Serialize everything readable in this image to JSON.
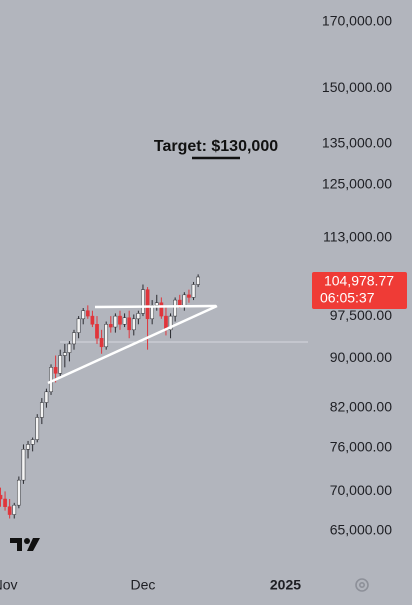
{
  "chart_data": {
    "type": "candlestick",
    "annotation": "Target: $130,000",
    "log_scale": true,
    "up_color": "#f4f4f4",
    "down_color": "#e0353b",
    "x": [
      -1,
      0,
      1,
      2,
      3,
      4,
      5,
      6,
      7,
      8,
      9,
      10,
      11,
      12,
      13,
      14,
      15,
      16,
      17,
      18,
      19,
      20,
      21,
      22,
      23,
      24,
      25,
      26,
      27,
      28,
      29,
      30,
      31,
      32,
      33,
      34,
      35,
      36,
      37,
      38,
      39,
      40,
      41,
      42
    ],
    "open": [
      69500,
      69000,
      68000,
      67000,
      68200,
      71500,
      75800,
      76500,
      77200,
      80500,
      82800,
      84500,
      88500,
      87500,
      90500,
      91000,
      92500,
      94500,
      97000,
      98500,
      97500,
      96000,
      93500,
      92000,
      96000,
      95500,
      97500,
      96000,
      97200,
      95000,
      97000,
      98000,
      102500,
      97000,
      99500,
      100000,
      97500,
      95000,
      97500,
      100500,
      99500,
      101500,
      101000,
      103500
    ],
    "high": [
      70500,
      70000,
      69000,
      68500,
      72000,
      76500,
      77000,
      77500,
      81000,
      83500,
      85000,
      89000,
      90500,
      91500,
      92500,
      93000,
      95000,
      97500,
      99000,
      99500,
      98500,
      97500,
      95000,
      96500,
      97500,
      98000,
      98500,
      98000,
      98500,
      97800,
      98500,
      103500,
      103000,
      100500,
      101500,
      101000,
      99500,
      98000,
      101000,
      101500,
      102000,
      102500,
      104000,
      105500
    ],
    "low": [
      68000,
      67500,
      66500,
      66500,
      67800,
      71000,
      74500,
      75500,
      76800,
      79500,
      82000,
      84000,
      86000,
      87000,
      88500,
      89500,
      91500,
      93500,
      96000,
      97000,
      95500,
      92500,
      90800,
      91500,
      94500,
      94500,
      95000,
      95500,
      93500,
      94000,
      96000,
      97500,
      91500,
      96000,
      98500,
      97000,
      94000,
      93500,
      96500,
      99000,
      98500,
      100000,
      100500,
      103000
    ],
    "close": [
      69000,
      68000,
      67000,
      68200,
      71500,
      75800,
      76500,
      77200,
      80500,
      82800,
      84500,
      88500,
      87500,
      90500,
      91000,
      92500,
      94500,
      97000,
      98500,
      97500,
      96000,
      93500,
      92000,
      96000,
      95500,
      97500,
      96000,
      97200,
      95000,
      97000,
      98000,
      102500,
      97000,
      99500,
      100000,
      97500,
      95000,
      97500,
      100500,
      99500,
      101500,
      101000,
      103500,
      104978.77
    ],
    "price_label": {
      "value": 104978.77,
      "label": "104,978.77"
    },
    "countdown": "06:05:37",
    "xlim": [
      -1.1,
      65.9
    ],
    "xticks": [
      {
        "value": 0,
        "label": "Nov"
      },
      {
        "value": 30,
        "label": "Dec"
      },
      {
        "value": 61,
        "label": "2025"
      }
    ],
    "ylim": [
      59765,
      177218
    ],
    "yticks": [
      {
        "value": 170000,
        "label": "170,000.00"
      },
      {
        "value": 150000,
        "label": "150,000.00"
      },
      {
        "value": 135000,
        "label": "135,000.00"
      },
      {
        "value": 125000,
        "label": "125,000.00"
      },
      {
        "value": 113000,
        "label": "113,000.00"
      },
      {
        "value": 97500,
        "label": "97,500.00"
      },
      {
        "value": 90000,
        "label": "90,000.00"
      },
      {
        "value": 82000,
        "label": "82,000.00"
      },
      {
        "value": 76000,
        "label": "76,000.00"
      },
      {
        "value": 70000,
        "label": "70,000.00"
      },
      {
        "value": 65000,
        "label": "65,000.00"
      }
    ]
  }
}
